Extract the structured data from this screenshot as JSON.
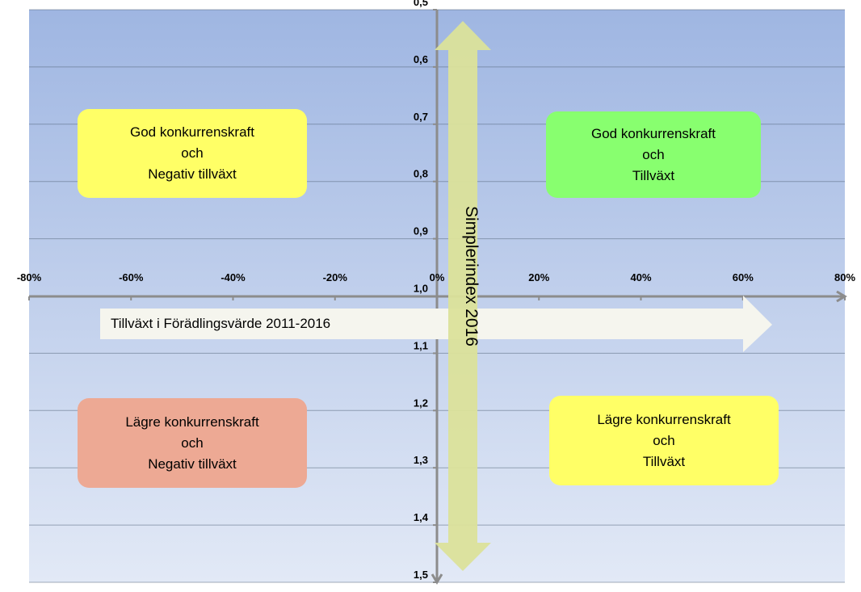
{
  "chart_data": {
    "type": "quadrant",
    "x_axis": {
      "tick_labels": [
        "-80%",
        "-60%",
        "-40%",
        "-20%",
        "0%",
        "20%",
        "40%",
        "60%",
        "80%"
      ],
      "range": [
        -80,
        80
      ],
      "unit": "%"
    },
    "y_axis": {
      "tick_labels": [
        "0,5",
        "0,6",
        "0,7",
        "0,8",
        "0,9",
        "1,0",
        "1,1",
        "1,2",
        "1,3",
        "1,4",
        "1,5"
      ],
      "range": [
        0.5,
        1.5
      ],
      "reversed": true
    },
    "grid": true,
    "horizontal_arrow_label": "Tillväxt i Förädlingsvärde 2011-2016",
    "vertical_arrow_label": "Simplerindex 2016",
    "quadrants": [
      {
        "position": "top-left",
        "lines": [
          "God konkurrenskraft",
          "och",
          "Negativ tillväxt"
        ],
        "color": "#ffff66"
      },
      {
        "position": "top-right",
        "lines": [
          "God konkurrenskraft",
          "och",
          "Tillväxt"
        ],
        "color": "#88ff6f"
      },
      {
        "position": "bottom-left",
        "lines": [
          "Lägre konkurrenskraft",
          "och",
          "Negativ tillväxt"
        ],
        "color": "#eda994"
      },
      {
        "position": "bottom-right",
        "lines": [
          "Lägre konkurrenskraft",
          "och",
          "Tillväxt"
        ],
        "color": "#ffff66"
      }
    ],
    "colors": {
      "background_top": "#9fb6e2",
      "background_bottom": "#e2e9f6",
      "vertical_arrow": "#dbe29a",
      "horizontal_arrow": "#f5f5ee",
      "axis": "#8c8c8c"
    }
  }
}
